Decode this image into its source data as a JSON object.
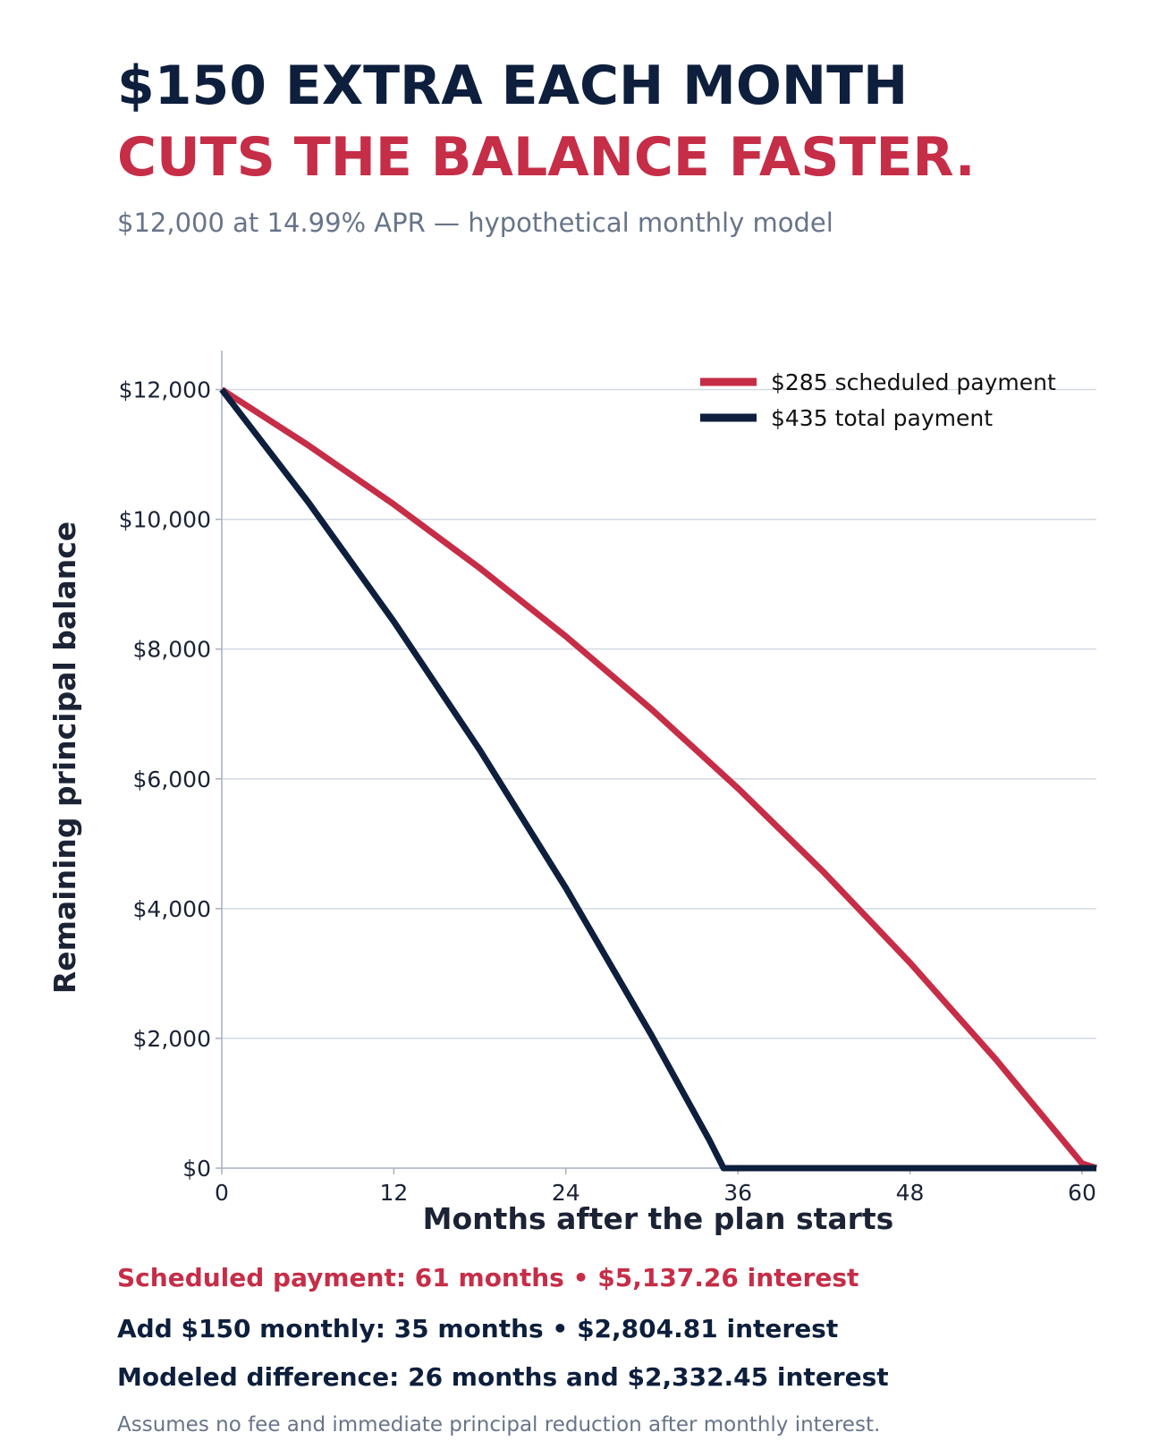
{
  "header": {
    "title_line1": "$150 EXTRA EACH MONTH",
    "title_line2": "CUTS THE BALANCE FASTER.",
    "subtitle": "$12,000 at 14.99% APR — hypothetical monthly model"
  },
  "colors": {
    "scheduled": "#c62d47",
    "extra": "#0d1f3c",
    "grid": "#d3d9e2",
    "axis": "#a7b0bf"
  },
  "chart_data": {
    "type": "line",
    "xlabel": "Months after the plan starts",
    "ylabel": "Remaining principal balance",
    "xlim": [
      0,
      61
    ],
    "ylim": [
      0,
      12600
    ],
    "x_ticks": [
      0,
      12,
      24,
      36,
      48,
      60
    ],
    "y_ticks": [
      0,
      2000,
      4000,
      6000,
      8000,
      10000,
      12000
    ],
    "y_tick_labels": [
      "$0",
      "$2,000",
      "$4,000",
      "$6,000",
      "$8,000",
      "$10,000",
      "$12,000"
    ],
    "grid": "horizontal",
    "legend_position": "top-right",
    "series": [
      {
        "name": "$285 scheduled payment",
        "color": "#c62d47",
        "points": [
          [
            0,
            12000
          ],
          [
            6,
            11146
          ],
          [
            12,
            10230
          ],
          [
            18,
            9248
          ],
          [
            24,
            8195
          ],
          [
            30,
            7066
          ],
          [
            36,
            5855
          ],
          [
            42,
            4557
          ],
          [
            48,
            3165
          ],
          [
            54,
            1672
          ],
          [
            60,
            72
          ],
          [
            61,
            0
          ]
        ]
      },
      {
        "name": "$435 total payment",
        "color": "#0d1f3c",
        "points": [
          [
            0,
            12000
          ],
          [
            6,
            10275
          ],
          [
            12,
            8425
          ],
          [
            18,
            6442
          ],
          [
            24,
            4316
          ],
          [
            30,
            2036
          ],
          [
            34,
            435
          ],
          [
            35,
            0
          ],
          [
            61,
            0
          ]
        ]
      }
    ]
  },
  "summary": {
    "line1": "Scheduled payment: 61 months  •  $5,137.26 interest",
    "line2": "Add $150 monthly: 35 months  •  $2,804.81 interest",
    "line3": "Modeled difference: 26 months and $2,332.45 interest"
  },
  "footnote": "Assumes no fee and immediate principal reduction after monthly interest."
}
